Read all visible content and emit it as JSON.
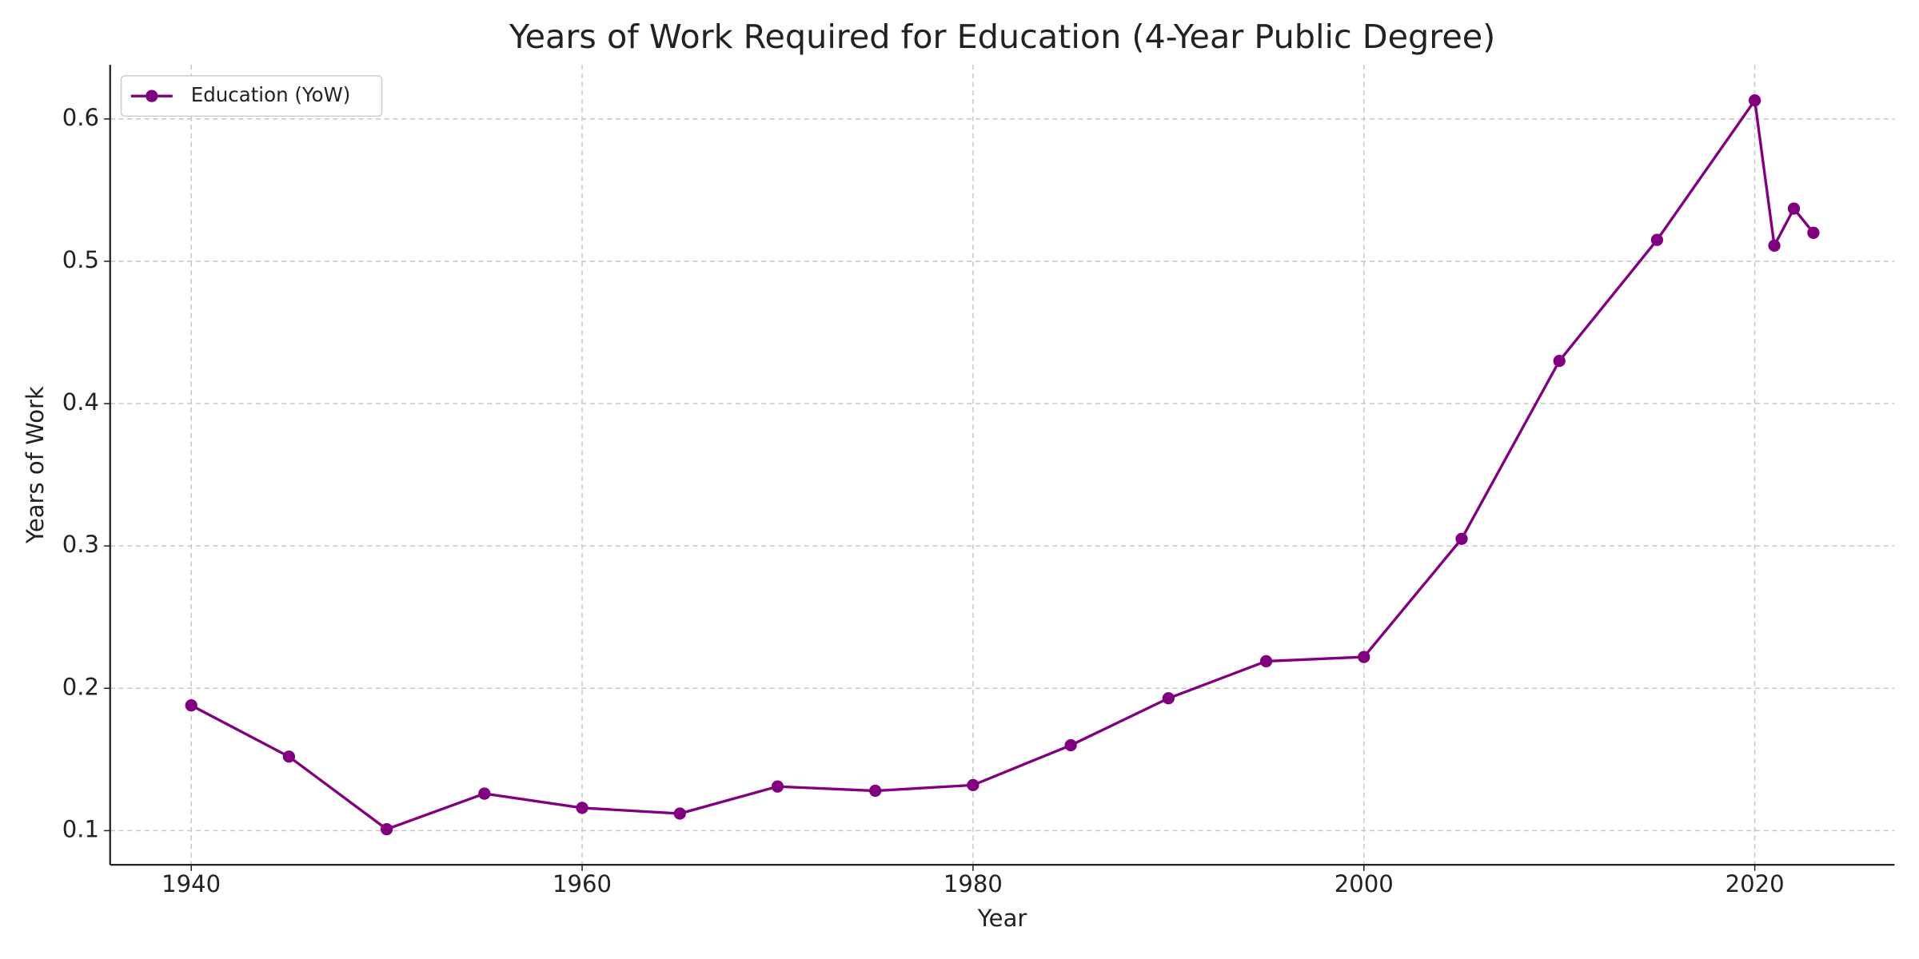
{
  "chart_data": {
    "type": "line",
    "title": "Years of Work Required for Education (4-Year Public Degree)",
    "x_label": "Year",
    "y_label": "Years of Work",
    "x": [
      1940,
      1945,
      1950,
      1955,
      1960,
      1965,
      1970,
      1975,
      1980,
      1985,
      1990,
      1995,
      2000,
      2005,
      2010,
      2015,
      2020,
      2021,
      2022,
      2023
    ],
    "series": [
      {
        "name": "Education (YoW)",
        "color": "#800080",
        "values": [
          0.188,
          0.152,
          0.101,
          0.126,
          0.116,
          0.112,
          0.131,
          0.128,
          0.132,
          0.16,
          0.193,
          0.219,
          0.222,
          0.305,
          0.43,
          0.515,
          0.613,
          0.511,
          0.537,
          0.52
        ]
      }
    ],
    "xlim": [
      1935.85,
      2027.15
    ],
    "xticks": [
      1940,
      1960,
      1980,
      2000,
      2020
    ],
    "ylim": [
      0.076,
      0.638
    ],
    "yticks": [
      0.1,
      0.2,
      0.3,
      0.4,
      0.5,
      0.6
    ],
    "grid": true,
    "legend": "upper left"
  }
}
